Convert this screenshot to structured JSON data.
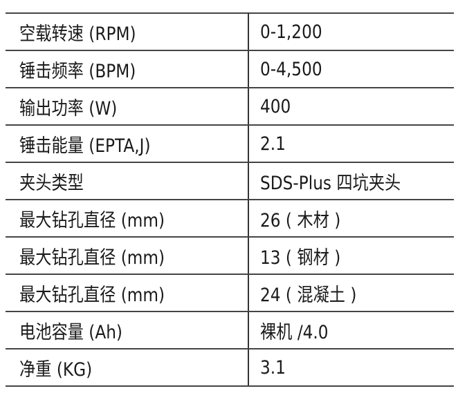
{
  "specs": [
    {
      "label": "空载转速 (RPM)",
      "value": "0-1,200"
    },
    {
      "label": "锤击频率 (BPM)",
      "value": "0-4,500"
    },
    {
      "label": "输出功率 (W)",
      "value": "400"
    },
    {
      "label": "锤击能量 (EPTA,J)",
      "value": "2.1"
    },
    {
      "label": "夹头类型",
      "value": "SDS-Plus 四坑夹头"
    },
    {
      "label": "最大钻孔直径 (mm)",
      "value": "26 ( 木材 )"
    },
    {
      "label": "最大钻孔直径 (mm)",
      "value": "13 ( 钢材 )"
    },
    {
      "label": "最大钻孔直径 (mm)",
      "value": "24 ( 混凝土 )"
    },
    {
      "label": "电池容量 (Ah)",
      "value": "裸机 /4.0"
    },
    {
      "label": "净重 (KG)",
      "value": "3.1"
    }
  ]
}
